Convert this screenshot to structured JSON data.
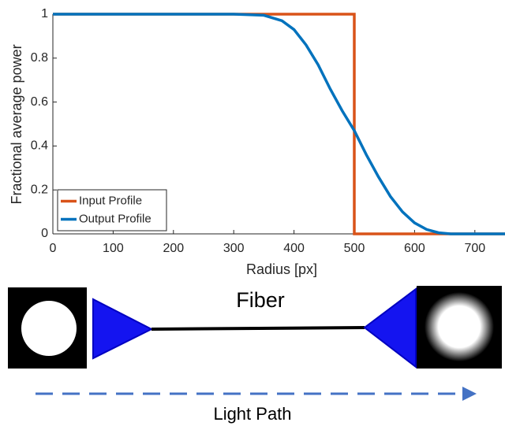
{
  "chart_data": {
    "type": "line",
    "x_label": "Radius [px]",
    "y_label": "Fractional average power",
    "xlim": [
      0,
      750
    ],
    "xticks": [
      0,
      100,
      200,
      300,
      400,
      500,
      600,
      700
    ],
    "ylim": [
      0,
      1
    ],
    "yticks": [
      0,
      0.2,
      0.4,
      0.6,
      0.8,
      1
    ],
    "legend": "lower-left",
    "series": [
      {
        "name": "Input Profile",
        "color": "#d95319",
        "x": [
          0,
          500,
          500,
          750
        ],
        "values": [
          1,
          1,
          0,
          0
        ]
      },
      {
        "name": "Output Profile",
        "color": "#0072bd",
        "x": [
          0,
          300,
          350,
          380,
          400,
          420,
          440,
          460,
          480,
          500,
          520,
          540,
          560,
          580,
          600,
          620,
          640,
          660,
          750
        ],
        "values": [
          1,
          1,
          0.995,
          0.97,
          0.93,
          0.86,
          0.77,
          0.66,
          0.56,
          0.47,
          0.36,
          0.26,
          0.17,
          0.1,
          0.05,
          0.02,
          0.005,
          0,
          0
        ]
      }
    ]
  },
  "diagram": {
    "fiber_label": "Fiber",
    "path_label": "Light Path"
  }
}
